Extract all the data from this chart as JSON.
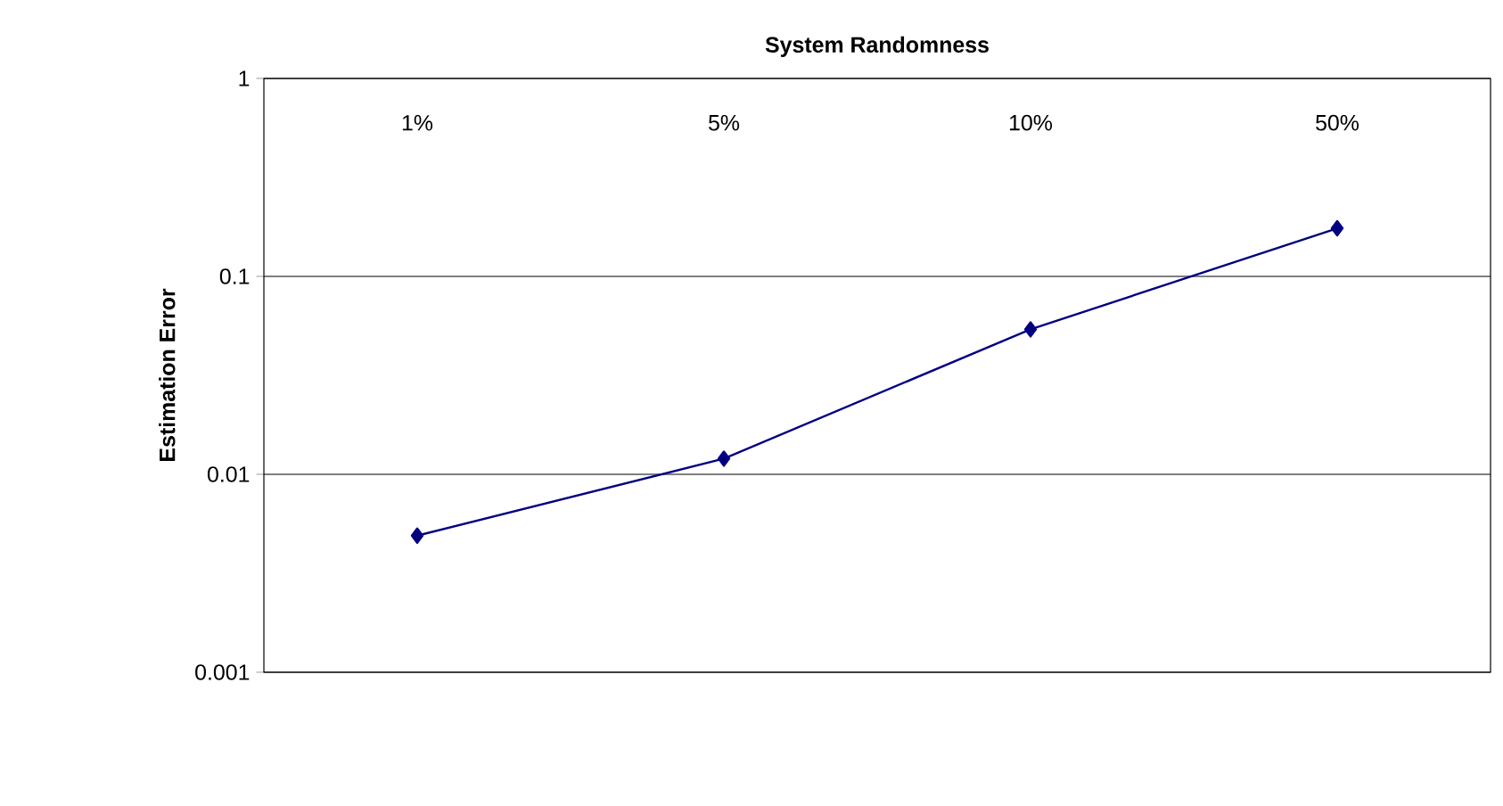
{
  "chart_data": {
    "type": "line",
    "xlabel": "System Randomness",
    "ylabel": "Estimation Error",
    "categories": [
      "1%",
      "5%",
      "10%",
      "50%"
    ],
    "values": [
      0.0049,
      0.012,
      0.054,
      0.175
    ],
    "color": "#000080",
    "marker": "diamond",
    "line_style": "solid",
    "log": true,
    "grid": "y",
    "ylim": [
      0.001,
      1
    ],
    "yticks": [
      0.001,
      0.01,
      0.1,
      1
    ]
  }
}
